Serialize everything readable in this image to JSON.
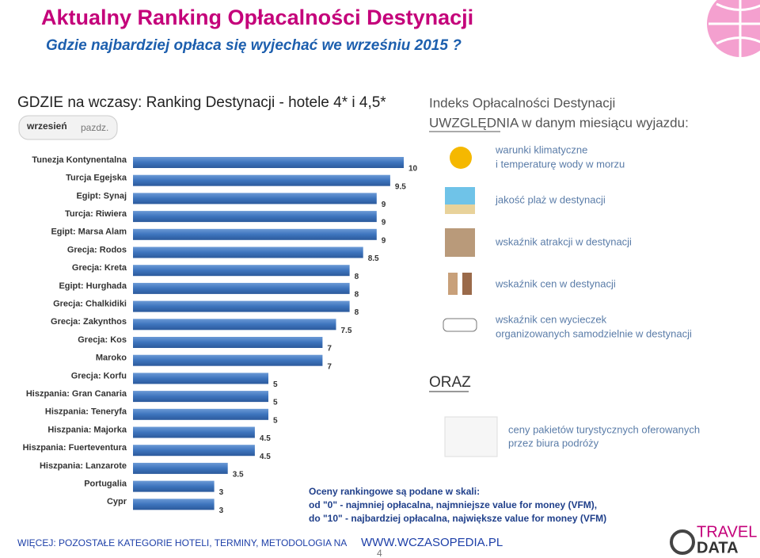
{
  "header": {
    "title": "Aktualny Ranking Opłacalności Destynacji",
    "subtitle": "Gdzie najbardziej opłaca się wyjechać we wrześniu 2015 ?"
  },
  "chart_data": {
    "type": "bar",
    "orientation": "horizontal",
    "title": "GDZIE na wczasy: Ranking Destynacji - hotele 4* i 4,5*",
    "tabs": [
      "wrzesień",
      "pazdz."
    ],
    "categories": [
      "Tunezja Kontynentalna",
      "Turcja Egejska",
      "Egipt: Synaj",
      "Turcja: Riwiera",
      "Egipt: Marsa Alam",
      "Grecja: Rodos",
      "Grecja: Kreta",
      "Egipt: Hurghada",
      "Grecja: Chalkidiki",
      "Grecja: Zakynthos",
      "Grecja: Kos",
      "Maroko",
      "Grecja: Korfu",
      "Hiszpania: Gran Canaria",
      "Hiszpania: Teneryfa",
      "Hiszpania: Majorka",
      "Hiszpania: Fuerteventura",
      "Hiszpania: Lanzarote",
      "Portugalia",
      "Cypr"
    ],
    "values": [
      10,
      9.5,
      9,
      9,
      9,
      8.5,
      8,
      8,
      8,
      7.5,
      7,
      7,
      5,
      5,
      5,
      4.5,
      4.5,
      3.5,
      3,
      3
    ],
    "color": "#3d74bd",
    "xlim": [
      0,
      10
    ]
  },
  "panel": {
    "heading": [
      "Indeks Opłacalności Destynacji",
      "UWZGLĘDNIA w danym miesiącu wyjazdu:"
    ],
    "items": [
      [
        "warunki klimatyczne",
        "i temperaturę wody w morzu"
      ],
      [
        "jakość plaż w destynacji"
      ],
      [
        "wskaźnik atrakcji w destynacji"
      ],
      [
        "wskaźnik cen w destynacji"
      ],
      [
        "wskaźnik cen wycieczek",
        "organizowanych samodzielnie w destynacji"
      ]
    ],
    "oraz": "ORAZ",
    "packages": [
      "ceny pakietów turystycznych oferowanych",
      "przez biura podróży"
    ]
  },
  "notes": [
    "Oceny rankingowe są podane w skali:",
    "od \"0\" - najmniej opłacalna, najmniejsze value for money (VFM),",
    "do \"10\" - najbardziej opłacalna, największe value for money (VFM)"
  ],
  "footer": {
    "text": "WIĘCEJ: POZOSTAŁE KATEGORIE HOTELI, TERMINY, METODOLOGIA NA",
    "url": "WWW.WCZASOPEDIA.PL",
    "page": "4",
    "logo": [
      "TRAVEL",
      "DATA"
    ]
  }
}
